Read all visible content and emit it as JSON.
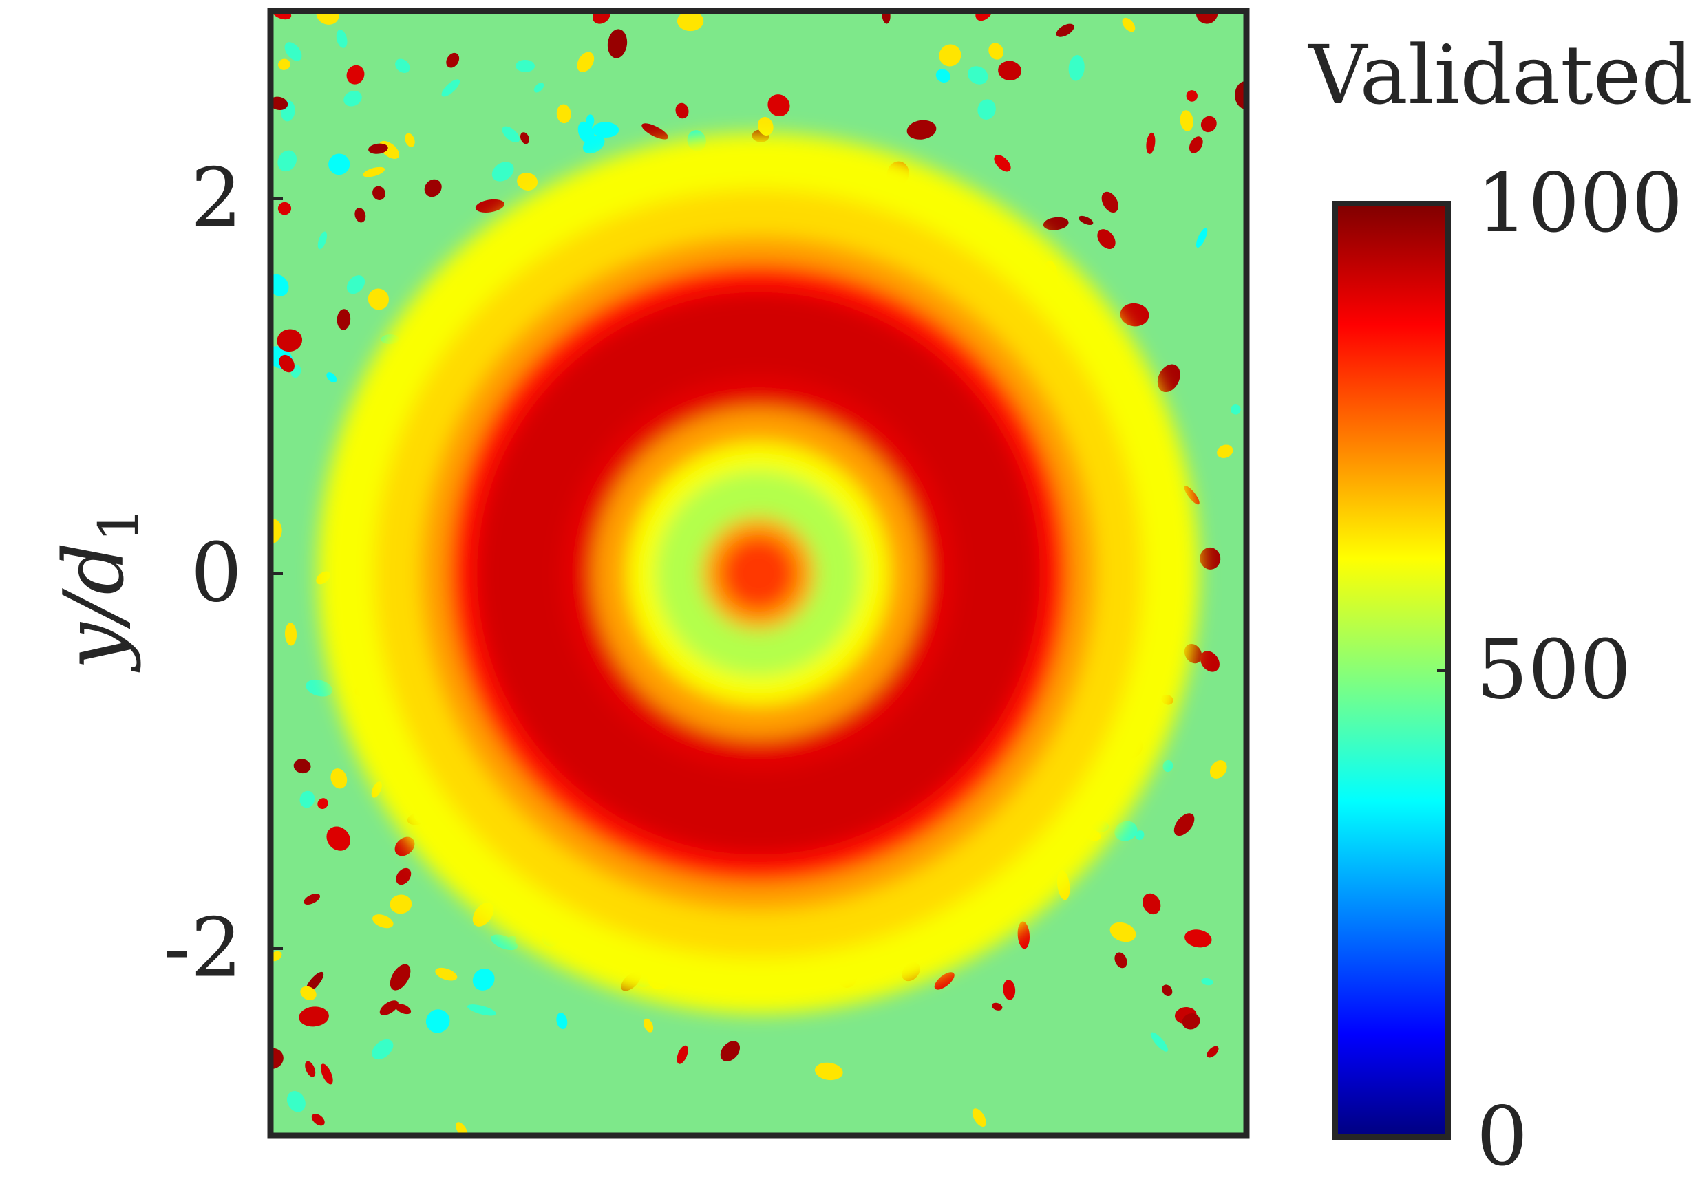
{
  "chart_data": {
    "type": "heatmap",
    "title": "",
    "xlabel": "",
    "ylabel": "y/d1",
    "ylabel_main": "y/d",
    "ylabel_sub": "1",
    "ylim": [
      -3,
      3
    ],
    "xlim": [
      -2.6,
      2.6
    ],
    "yticks": [
      {
        "value": -2,
        "label": "-2"
      },
      {
        "value": 0,
        "label": "0"
      },
      {
        "value": 2,
        "label": "2"
      }
    ],
    "colorbar": {
      "title": "Validated",
      "range": [
        0,
        1000
      ],
      "colormap": "jet",
      "ticks": [
        {
          "value": 0,
          "label": "0"
        },
        {
          "value": 500,
          "label": "500"
        },
        {
          "value": 1000,
          "label": "1000"
        }
      ]
    },
    "field_description_values": {
      "center_core": 820,
      "inner_valley": 550,
      "ring_peak": 920,
      "ring_center_radius": 1.35,
      "outer_background": 520
    },
    "grid": false,
    "legend": "none"
  },
  "colors": {
    "axis": "#262626",
    "background": "#ffffff"
  }
}
